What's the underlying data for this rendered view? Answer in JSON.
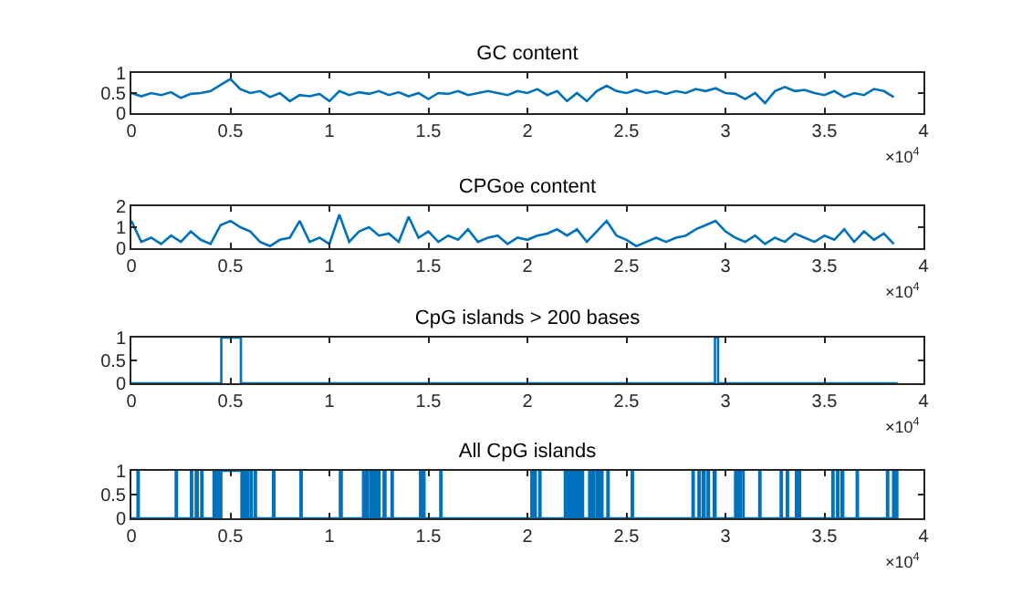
{
  "chart_data": [
    {
      "type": "line",
      "title": "GC content",
      "x": [
        0,
        0.05,
        0.1,
        0.15,
        0.2,
        0.25,
        0.3,
        0.35,
        0.4,
        0.45,
        0.5,
        0.55,
        0.6,
        0.65,
        0.7,
        0.75,
        0.8,
        0.85,
        0.9,
        0.95,
        1,
        1.05,
        1.1,
        1.15,
        1.2,
        1.25,
        1.3,
        1.35,
        1.4,
        1.45,
        1.5,
        1.55,
        1.6,
        1.65,
        1.7,
        1.75,
        1.8,
        1.85,
        1.9,
        1.95,
        2,
        2.05,
        2.1,
        2.15,
        2.2,
        2.25,
        2.3,
        2.35,
        2.4,
        2.45,
        2.5,
        2.55,
        2.6,
        2.65,
        2.7,
        2.75,
        2.8,
        2.85,
        2.9,
        2.95,
        3,
        3.05,
        3.1,
        3.15,
        3.2,
        3.25,
        3.3,
        3.35,
        3.4,
        3.45,
        3.5,
        3.55,
        3.6,
        3.65,
        3.7,
        3.75,
        3.8,
        3.85
      ],
      "values": [
        0.5,
        0.42,
        0.5,
        0.45,
        0.52,
        0.38,
        0.48,
        0.5,
        0.55,
        0.7,
        0.85,
        0.6,
        0.5,
        0.55,
        0.4,
        0.5,
        0.3,
        0.45,
        0.42,
        0.48,
        0.3,
        0.55,
        0.45,
        0.52,
        0.48,
        0.55,
        0.45,
        0.52,
        0.42,
        0.5,
        0.35,
        0.5,
        0.48,
        0.55,
        0.45,
        0.5,
        0.55,
        0.5,
        0.45,
        0.55,
        0.5,
        0.6,
        0.45,
        0.55,
        0.3,
        0.5,
        0.3,
        0.55,
        0.68,
        0.55,
        0.5,
        0.58,
        0.5,
        0.55,
        0.48,
        0.55,
        0.5,
        0.6,
        0.55,
        0.62,
        0.5,
        0.48,
        0.35,
        0.5,
        0.25,
        0.55,
        0.65,
        0.55,
        0.58,
        0.5,
        0.45,
        0.55,
        0.4,
        0.5,
        0.45,
        0.6,
        0.55,
        0.4
      ],
      "color": "#0072bd",
      "xlim": [
        0,
        4
      ],
      "xticks": [
        0,
        0.5,
        1,
        1.5,
        2,
        2.5,
        3,
        3.5,
        4
      ],
      "ylim": [
        0,
        1
      ],
      "yticks": [
        0,
        0.5,
        1
      ],
      "annotations": [
        "×10$^{4}$"
      ]
    },
    {
      "type": "line",
      "title": "CPGoe content",
      "x": [
        0,
        0.05,
        0.1,
        0.15,
        0.2,
        0.25,
        0.3,
        0.35,
        0.4,
        0.45,
        0.5,
        0.55,
        0.6,
        0.65,
        0.7,
        0.75,
        0.8,
        0.85,
        0.9,
        0.95,
        1,
        1.05,
        1.1,
        1.15,
        1.2,
        1.25,
        1.3,
        1.35,
        1.4,
        1.45,
        1.5,
        1.55,
        1.6,
        1.65,
        1.7,
        1.75,
        1.8,
        1.85,
        1.9,
        1.95,
        2,
        2.05,
        2.1,
        2.15,
        2.2,
        2.25,
        2.3,
        2.35,
        2.4,
        2.45,
        2.5,
        2.55,
        2.6,
        2.65,
        2.7,
        2.75,
        2.8,
        2.85,
        2.9,
        2.95,
        3,
        3.05,
        3.1,
        3.15,
        3.2,
        3.25,
        3.3,
        3.35,
        3.4,
        3.45,
        3.5,
        3.55,
        3.6,
        3.65,
        3.7,
        3.75,
        3.8,
        3.85
      ],
      "values": [
        1.3,
        0.3,
        0.5,
        0.2,
        0.6,
        0.3,
        0.8,
        0.4,
        0.2,
        1.1,
        1.3,
        1.0,
        0.8,
        0.3,
        0.1,
        0.4,
        0.5,
        1.3,
        0.3,
        0.5,
        0.2,
        1.6,
        0.3,
        0.8,
        1.0,
        0.6,
        0.7,
        0.3,
        1.5,
        0.5,
        0.8,
        0.3,
        0.6,
        0.4,
        0.9,
        0.3,
        0.5,
        0.6,
        0.2,
        0.5,
        0.4,
        0.6,
        0.7,
        0.9,
        0.6,
        0.9,
        0.3,
        0.8,
        1.3,
        0.6,
        0.4,
        0.1,
        0.3,
        0.5,
        0.3,
        0.5,
        0.6,
        0.9,
        1.1,
        1.3,
        0.8,
        0.5,
        0.3,
        0.6,
        0.2,
        0.5,
        0.3,
        0.7,
        0.5,
        0.3,
        0.6,
        0.4,
        0.9,
        0.3,
        0.8,
        0.4,
        0.7,
        0.2
      ],
      "color": "#0072bd",
      "xlim": [
        0,
        4
      ],
      "xticks": [
        0,
        0.5,
        1,
        1.5,
        2,
        2.5,
        3,
        3.5,
        4
      ],
      "ylim": [
        0,
        2
      ],
      "yticks": [
        0,
        1,
        2
      ],
      "annotations": [
        "×10$^{4}$"
      ]
    },
    {
      "type": "step",
      "title": "CpG islands > 200 bases",
      "x": [
        0,
        0.454,
        0.553,
        2.947,
        2.963,
        3.87
      ],
      "values": [
        0,
        1,
        0,
        1,
        0,
        0
      ],
      "color": "#0072bd",
      "xlim": [
        0,
        4
      ],
      "xticks": [
        0,
        0.5,
        1,
        1.5,
        2,
        2.5,
        3,
        3.5,
        4
      ],
      "ylim": [
        0,
        1
      ],
      "yticks": [
        0,
        0.5,
        1
      ],
      "annotations": [
        "×10$^{4}$"
      ]
    },
    {
      "type": "step",
      "title": "All CpG islands",
      "x": [
        0,
        0.031,
        0.037,
        0.224,
        0.23,
        0.301,
        0.307,
        0.325,
        0.335,
        0.353,
        0.359,
        0.415,
        0.421,
        0.43,
        0.436,
        0.442,
        0.448,
        0.454,
        0.556,
        0.568,
        0.574,
        0.583,
        0.589,
        0.602,
        0.608,
        0.623,
        0.629,
        0.715,
        0.722,
        0.854,
        0.86,
        1.053,
        1.062,
        1.17,
        1.176,
        1.188,
        1.194,
        1.207,
        1.216,
        1.228,
        1.234,
        1.246,
        1.253,
        1.274,
        1.283,
        1.314,
        1.32,
        1.458,
        1.468,
        1.474,
        1.48,
        1.56,
        1.566,
        2.02,
        2.026,
        2.035,
        2.042,
        2.06,
        2.066,
        2.189,
        2.195,
        2.204,
        2.214,
        2.22,
        2.226,
        2.235,
        2.241,
        2.25,
        2.26,
        2.269,
        2.281,
        2.312,
        2.318,
        2.327,
        2.336,
        2.349,
        2.361,
        2.373,
        2.379,
        2.404,
        2.41,
        2.527,
        2.533,
        2.834,
        2.84,
        2.864,
        2.871,
        2.886,
        2.895,
        2.91,
        2.917,
        2.941,
        2.95,
        3.049,
        3.055,
        3.064,
        3.07,
        3.079,
        3.092,
        3.171,
        3.177,
        3.279,
        3.285,
        3.31,
        3.316,
        3.356,
        3.362,
        3.371,
        3.377,
        3.54,
        3.546,
        3.564,
        3.57,
        3.586,
        3.595,
        3.663,
        3.669,
        3.816,
        3.822,
        3.847,
        3.853,
        3.862,
        3.868,
        3.87
      ],
      "values": [
        0,
        1,
        0,
        1,
        0,
        1,
        0,
        1,
        0,
        1,
        0,
        1,
        0,
        1,
        0,
        1,
        0,
        1,
        0,
        1,
        0,
        1,
        0,
        1,
        0,
        1,
        0,
        1,
        0,
        1,
        0,
        1,
        0,
        1,
        0,
        1,
        0,
        1,
        0,
        1,
        0,
        1,
        0,
        1,
        0,
        1,
        0,
        1,
        0,
        1,
        0,
        1,
        0,
        1,
        0,
        1,
        0,
        1,
        0,
        1,
        0,
        1,
        0,
        1,
        0,
        1,
        0,
        1,
        0,
        1,
        0,
        1,
        0,
        1,
        0,
        1,
        0,
        1,
        0,
        1,
        0,
        1,
        0,
        1,
        0,
        1,
        0,
        1,
        0,
        1,
        0,
        1,
        0,
        1,
        0,
        1,
        0,
        1,
        0,
        1,
        0,
        1,
        0,
        1,
        0,
        1,
        0,
        1,
        0,
        1,
        0,
        1,
        0,
        1,
        0,
        1,
        0,
        1,
        0,
        1,
        0,
        1,
        0,
        0
      ],
      "color": "#0072bd",
      "xlim": [
        0,
        4
      ],
      "xticks": [
        0,
        0.5,
        1,
        1.5,
        2,
        2.5,
        3,
        3.5,
        4
      ],
      "ylim": [
        0,
        1
      ],
      "yticks": [
        0,
        0.5,
        1
      ],
      "annotations": [
        "×10$^{4}$"
      ]
    }
  ]
}
